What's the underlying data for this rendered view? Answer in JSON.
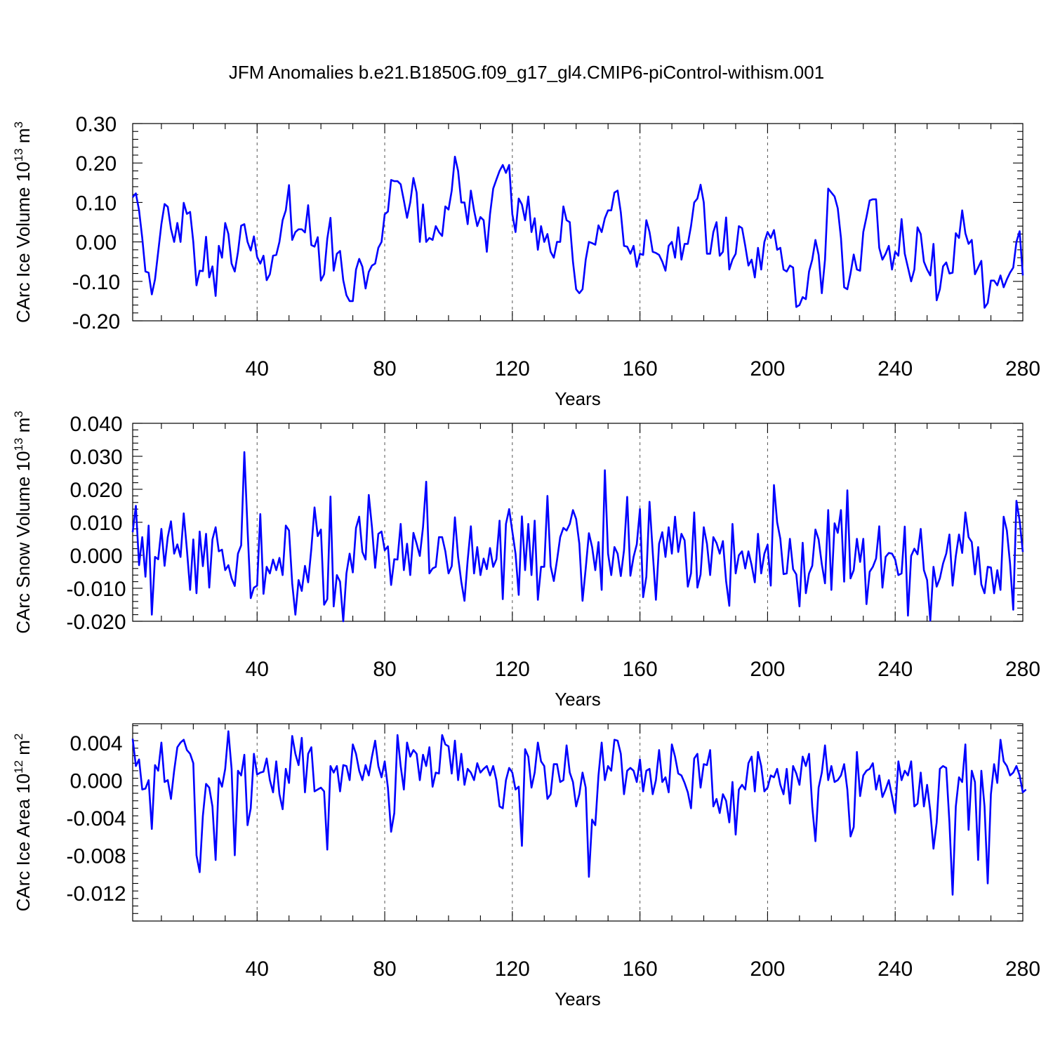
{
  "figure": {
    "title": "JFM Anomalies b.e21.B1850G.f09_g17_gl4.CMIP6-piControl-withism.001",
    "line_color": "#0000ff"
  },
  "chart_data": [
    {
      "type": "line",
      "ylabel": "CArc Ice Volume 10",
      "ylabel_exp": "13",
      "ylabel_unit": "m",
      "ylabel_unit_exp": "3",
      "xlabel": "Years",
      "xlim": [
        1,
        280
      ],
      "ylim": [
        -0.2,
        0.3
      ],
      "grid": "x-dashed",
      "xticks": [
        40,
        80,
        120,
        160,
        200,
        240,
        280
      ],
      "xtick_labels": [
        "40",
        "80",
        "120",
        "160",
        "200",
        "240",
        "280"
      ],
      "yticks": [
        -0.2,
        -0.1,
        0.0,
        0.1,
        0.2,
        0.3
      ],
      "ytick_labels": [
        "-0.20",
        "-0.10",
        "0.00",
        "0.10",
        "0.20",
        "0.30"
      ],
      "x_start": 1,
      "values": [
        0.113,
        0.123,
        0.08,
        0.01,
        -0.075,
        -0.078,
        -0.133,
        -0.095,
        -0.025,
        0.045,
        0.096,
        0.089,
        0.033,
        0.0,
        0.048,
        0.0,
        0.099,
        0.071,
        0.076,
        0.0,
        -0.11,
        -0.073,
        -0.074,
        0.013,
        -0.09,
        -0.062,
        -0.137,
        -0.01,
        -0.04,
        0.048,
        0.02,
        -0.055,
        -0.075,
        -0.026,
        0.041,
        0.045,
        0.0,
        -0.022,
        0.014,
        -0.038,
        -0.055,
        -0.035,
        -0.097,
        -0.082,
        -0.035,
        -0.033,
        0.0,
        0.055,
        0.08,
        0.144,
        0.005,
        0.025,
        0.032,
        0.032,
        0.024,
        0.093,
        -0.008,
        -0.012,
        0.012,
        -0.098,
        -0.082,
        0.008,
        0.061,
        -0.073,
        -0.03,
        -0.023,
        -0.097,
        -0.135,
        -0.15,
        -0.15,
        -0.07,
        -0.043,
        -0.063,
        -0.118,
        -0.076,
        -0.06,
        -0.055,
        -0.015,
        0.0,
        0.07,
        0.077,
        0.157,
        0.154,
        0.154,
        0.146,
        0.105,
        0.061,
        0.1,
        0.162,
        0.125,
        0.0,
        0.095,
        0.0,
        0.01,
        0.005,
        0.04,
        0.025,
        0.015,
        0.09,
        0.082,
        0.13,
        0.216,
        0.18,
        0.1,
        0.1,
        0.045,
        0.13,
        0.08,
        0.04,
        0.063,
        0.055,
        -0.025,
        0.07,
        0.135,
        0.158,
        0.18,
        0.195,
        0.175,
        0.195,
        0.07,
        0.025,
        0.11,
        0.095,
        0.055,
        0.115,
        0.025,
        0.06,
        -0.02,
        0.04,
        0.0,
        0.02,
        -0.025,
        -0.04,
        0.0,
        0.0,
        0.09,
        0.055,
        0.05,
        -0.05,
        -0.12,
        -0.13,
        -0.12,
        -0.045,
        0.0,
        -0.003,
        -0.007,
        0.042,
        0.025,
        0.06,
        0.08,
        0.08,
        0.125,
        0.13,
        0.075,
        -0.01,
        -0.012,
        -0.03,
        -0.01,
        -0.063,
        -0.03,
        -0.033,
        0.055,
        0.025,
        -0.025,
        -0.028,
        -0.033,
        -0.05,
        -0.073,
        -0.01,
        0.0,
        -0.04,
        0.037,
        -0.045,
        -0.005,
        -0.005,
        0.04,
        0.1,
        0.11,
        0.145,
        0.1,
        -0.03,
        -0.03,
        0.025,
        0.05,
        -0.035,
        -0.025,
        0.062,
        -0.07,
        -0.045,
        -0.03,
        0.04,
        0.035,
        -0.01,
        -0.06,
        -0.045,
        -0.09,
        -0.015,
        -0.07,
        0.0,
        0.025,
        0.01,
        0.03,
        -0.02,
        -0.015,
        -0.07,
        -0.075,
        -0.06,
        -0.065,
        -0.165,
        -0.16,
        -0.14,
        -0.145,
        -0.075,
        -0.045,
        0.005,
        -0.033,
        -0.13,
        -0.045,
        0.135,
        0.125,
        0.115,
        0.085,
        0.01,
        -0.115,
        -0.12,
        -0.08,
        -0.032,
        -0.07,
        -0.073,
        0.025,
        0.063,
        0.105,
        0.108,
        0.108,
        -0.015,
        -0.045,
        -0.03,
        -0.01,
        -0.07,
        -0.025,
        -0.035,
        0.058,
        -0.03,
        -0.065,
        -0.1,
        -0.07,
        0.037,
        0.02,
        -0.05,
        -0.07,
        -0.085,
        -0.005,
        -0.148,
        -0.12,
        -0.062,
        -0.052,
        -0.08,
        -0.078,
        0.022,
        0.01,
        0.08,
        0.022,
        -0.005,
        0.005,
        -0.082,
        -0.065,
        -0.048,
        -0.167,
        -0.155,
        -0.098,
        -0.098,
        -0.11,
        -0.085,
        -0.115,
        -0.095,
        -0.078,
        -0.065,
        0.0,
        0.027,
        -0.085
      ]
    },
    {
      "type": "line",
      "ylabel": "CArc Snow Volume 10",
      "ylabel_exp": "13",
      "ylabel_unit": "m",
      "ylabel_unit_exp": "3",
      "xlabel": "Years",
      "xlim": [
        1,
        280
      ],
      "ylim": [
        -0.02,
        0.04
      ],
      "grid": "x-dashed",
      "xticks": [
        40,
        80,
        120,
        160,
        200,
        240,
        280
      ],
      "xtick_labels": [
        "40",
        "80",
        "120",
        "160",
        "200",
        "240",
        "280"
      ],
      "yticks": [
        -0.02,
        -0.01,
        0.0,
        0.01,
        0.02,
        0.03,
        0.04
      ],
      "ytick_labels": [
        "-0.020",
        "-0.010",
        "0.000",
        "0.010",
        "0.020",
        "0.030",
        "0.040"
      ],
      "x_start": 1,
      "values": [
        0.007,
        0.015,
        -0.003,
        0.0055,
        -0.0065,
        0.009,
        -0.018,
        -0.0005,
        -0.0012,
        0.008,
        -0.0032,
        0.0055,
        0.0103,
        0.0005,
        0.0033,
        -0.0005,
        0.0127,
        0.0017,
        -0.0105,
        0.0048,
        -0.0115,
        0.0072,
        -0.0033,
        0.0065,
        -0.0098,
        0.0048,
        0.0085,
        0.0012,
        0.0017,
        -0.0045,
        -0.003,
        -0.007,
        -0.0093,
        0.0005,
        0.003,
        0.0313,
        0.008,
        -0.013,
        -0.0098,
        -0.0092,
        0.0125,
        -0.0117,
        -0.0035,
        -0.0055,
        -0.0013,
        -0.0045,
        -0.0008,
        -0.006,
        0.009,
        0.0075,
        -0.0085,
        -0.018,
        -0.0075,
        -0.0108,
        -0.0032,
        -0.0082,
        0.002,
        0.0145,
        0.0058,
        0.0078,
        -0.015,
        -0.0133,
        0.0178,
        -0.0155,
        -0.006,
        -0.008,
        -0.02,
        -0.0055,
        0.0005,
        -0.0052,
        0.0083,
        0.0117,
        0.001,
        -0.0013,
        0.0183,
        0.0085,
        -0.0038,
        0.0065,
        0.0072,
        0.0015,
        0.0027,
        -0.009,
        -0.0012,
        -0.0013,
        0.0095,
        -0.0045,
        0.0035,
        -0.006,
        0.0068,
        0.0035,
        -0.0002,
        0.0085,
        0.0223,
        -0.0055,
        -0.004,
        -0.0035,
        0.0055,
        0.0055,
        0.0012,
        -0.0055,
        -0.0033,
        0.0115,
        -0.0005,
        -0.008,
        -0.0138,
        -0.0015,
        0.0088,
        -0.0055,
        0.0025,
        -0.006,
        -0.001,
        -0.0042,
        0.0022,
        -0.0035,
        -0.0012,
        0.0105,
        -0.0133,
        0.0095,
        0.014,
        0.0072,
        0.0005,
        -0.012,
        0.0118,
        -0.0045,
        0.0095,
        -0.006,
        0.0105,
        -0.0135,
        -0.0035,
        -0.0035,
        0.018,
        -0.0033,
        -0.0078,
        -0.0015,
        0.0055,
        0.0083,
        0.0075,
        0.0095,
        0.0137,
        0.011,
        0.0035,
        -0.0138,
        -0.004,
        0.0067,
        0.0025,
        -0.0045,
        0.004,
        -0.0105,
        0.0258,
        0.0005,
        -0.006,
        0.0025,
        0.0005,
        -0.0063,
        0.0015,
        0.0177,
        -0.0062,
        -0.0005,
        0.0033,
        0.014,
        -0.0127,
        -0.0065,
        0.0162,
        0.001,
        -0.0135,
        0.0035,
        0.007,
        -0.0005,
        0.0085,
        0.0005,
        0.0117,
        0.001,
        0.0065,
        0.0045,
        -0.0095,
        -0.0055,
        0.013,
        -0.0098,
        -0.0058,
        0.0085,
        0.0035,
        -0.006,
        0.0055,
        0.0037,
        0.0005,
        0.0043,
        -0.0078,
        -0.0153,
        0.0095,
        -0.0055,
        0.0,
        0.0012,
        -0.004,
        0.0012,
        -0.003,
        -0.0082,
        0.0065,
        -0.0055,
        0.0005,
        0.0032,
        -0.0092,
        0.0213,
        0.01,
        0.005,
        -0.0057,
        -0.0055,
        0.005,
        -0.0042,
        -0.0058,
        -0.0155,
        0.0038,
        -0.0115,
        -0.0055,
        -0.0032,
        0.0078,
        0.0048,
        -0.0027,
        -0.0085,
        0.0137,
        -0.0105,
        0.0097,
        0.0068,
        0.0137,
        -0.008,
        0.0197,
        -0.007,
        -0.0045,
        0.005,
        -0.002,
        0.005,
        -0.0148,
        -0.005,
        -0.0035,
        -0.001,
        0.0088,
        -0.0098,
        -0.0005,
        0.0007,
        0.0005,
        -0.0013,
        -0.006,
        -0.0055,
        0.0087,
        -0.0183,
        -0.0002,
        0.002,
        0.0003,
        0.008,
        -0.0045,
        -0.0075,
        -0.0198,
        -0.0035,
        -0.0095,
        -0.007,
        -0.0025,
        0.0005,
        0.0063,
        -0.0092,
        -0.0002,
        0.0063,
        0.0007,
        0.013,
        0.0055,
        0.004,
        -0.0058,
        0.0025,
        -0.0088,
        -0.0115,
        -0.0035,
        -0.0037,
        -0.0115,
        -0.0045,
        -0.0105,
        0.0117,
        0.0075,
        -0.0025,
        -0.0165,
        0.0165,
        0.0105,
        0.001
      ]
    },
    {
      "type": "line",
      "ylabel": "CArc Ice Area 10",
      "ylabel_exp": "12",
      "ylabel_unit": "m",
      "ylabel_unit_exp": "2",
      "xlabel": "Years",
      "xlim": [
        1,
        280
      ],
      "ylim": [
        -0.015,
        0.006
      ],
      "grid": "x-dashed",
      "xticks": [
        40,
        80,
        120,
        160,
        200,
        240,
        280
      ],
      "xtick_labels": [
        "40",
        "80",
        "120",
        "160",
        "200",
        "240",
        "280"
      ],
      "yticks": [
        -0.012,
        -0.008,
        -0.004,
        0.0,
        0.004
      ],
      "ytick_labels": [
        "-0.012",
        "-0.008",
        "-0.004",
        "0.000",
        "0.004"
      ],
      "x_start": 1,
      "values": [
        0.0044,
        0.0015,
        0.0022,
        -0.001,
        -0.0009,
        0.0,
        -0.0052,
        0.0016,
        0.001,
        0.004,
        -0.0002,
        0.0,
        -0.002,
        0.001,
        0.0035,
        0.004,
        0.0043,
        0.0032,
        0.0028,
        0.0018,
        -0.008,
        -0.0098,
        -0.0038,
        -0.0004,
        -0.0008,
        -0.0028,
        -0.0085,
        0.0002,
        -0.0007,
        0.0012,
        0.0052,
        0.0012,
        -0.008,
        0.001,
        0.0005,
        0.0027,
        -0.0048,
        -0.003,
        0.0028,
        0.0006,
        0.0008,
        0.0009,
        0.0023,
        0.0,
        -0.0013,
        0.002,
        -0.0015,
        -0.0031,
        0.0012,
        -0.0003,
        0.0047,
        0.0028,
        0.0016,
        0.0045,
        -0.0013,
        0.0028,
        0.0035,
        -0.0012,
        -0.001,
        -0.0008,
        -0.0012,
        -0.0074,
        0.0015,
        0.0008,
        0.0015,
        -0.0012,
        0.0016,
        0.0015,
        0.0,
        0.0038,
        0.0028,
        0.001,
        0.0,
        0.0016,
        0.0005,
        0.0025,
        0.0042,
        0.0015,
        0.0003,
        0.002,
        -0.0008,
        -0.0055,
        -0.0035,
        0.0048,
        0.0015,
        -0.001,
        0.004,
        0.0025,
        0.0032,
        0.0028,
        0.0,
        0.0027,
        0.0015,
        0.0035,
        -0.0007,
        0.0008,
        0.0007,
        0.0048,
        0.0038,
        0.0036,
        0.0007,
        0.0042,
        0.0,
        0.0028,
        -0.0005,
        0.0012,
        0.0008,
        0.0,
        0.0018,
        0.0008,
        0.0012,
        0.0015,
        0.0005,
        0.0015,
        0.0,
        -0.0028,
        -0.003,
        0.0,
        0.0013,
        0.0008,
        -0.001,
        -0.0007,
        -0.007,
        0.0033,
        0.0025,
        -0.0008,
        0.0008,
        0.004,
        0.002,
        0.0015,
        -0.002,
        -0.0015,
        0.0017,
        0.0017,
        -0.0002,
        0.0,
        0.0037,
        0.0008,
        -0.0002,
        -0.0028,
        -0.0015,
        0.0008,
        -0.0008,
        -0.0103,
        -0.0042,
        -0.0048,
        0.0005,
        0.004,
        0.0,
        0.0015,
        0.001,
        0.0043,
        0.0042,
        0.0028,
        -0.0015,
        0.001,
        0.0013,
        0.001,
        -0.0002,
        0.0022,
        -0.0012,
        0.001,
        0.0012,
        -0.0015,
        0.0,
        0.0032,
        -0.0002,
        0.0003,
        -0.0013,
        0.0038,
        0.0025,
        0.0007,
        0.0005,
        -0.0003,
        -0.0013,
        -0.003,
        0.0023,
        0.0028,
        -0.0008,
        0.0017,
        0.0016,
        0.0032,
        -0.0028,
        -0.002,
        -0.0035,
        -0.0015,
        -0.0022,
        -0.0045,
        -0.0002,
        -0.0058,
        -0.001,
        -0.0005,
        -0.001,
        0.0018,
        0.0025,
        -0.0012,
        0.003,
        0.0015,
        -0.0012,
        -0.0008,
        0.0005,
        0.0003,
        0.0012,
        -0.0005,
        -0.0015,
        0.0012,
        -0.0025,
        0.0015,
        0.0007,
        -0.0005,
        0.0025,
        0.0015,
        0.0028,
        -0.0028,
        -0.0065,
        -0.0008,
        0.0008,
        0.0037,
        0.0,
        0.0015,
        -0.0002,
        0.0,
        0.0005,
        0.0017,
        -0.001,
        -0.006,
        -0.005,
        0.003,
        -0.0017,
        0.0005,
        0.001,
        0.0012,
        0.0018,
        -0.001,
        0.0005,
        -0.0018,
        -0.001,
        0.0,
        -0.0017,
        -0.0035,
        0.002,
        0.0,
        0.001,
        0.0005,
        0.002,
        -0.0028,
        -0.0025,
        0.0008,
        -0.0028,
        -0.0005,
        -0.0033,
        -0.0073,
        -0.0045,
        0.0012,
        0.0015,
        0.0013,
        -0.0045,
        -0.0122,
        -0.0028,
        0.0003,
        -0.0002,
        0.0038,
        -0.0053,
        0.001,
        -0.0002,
        -0.0085,
        0.001,
        -0.0028,
        -0.011,
        -0.0015,
        0.0017,
        -0.0003,
        0.0043,
        0.002,
        0.0015,
        0.0005,
        0.0008,
        0.0015,
        0.0005,
        -0.0013,
        -0.001
      ]
    }
  ]
}
